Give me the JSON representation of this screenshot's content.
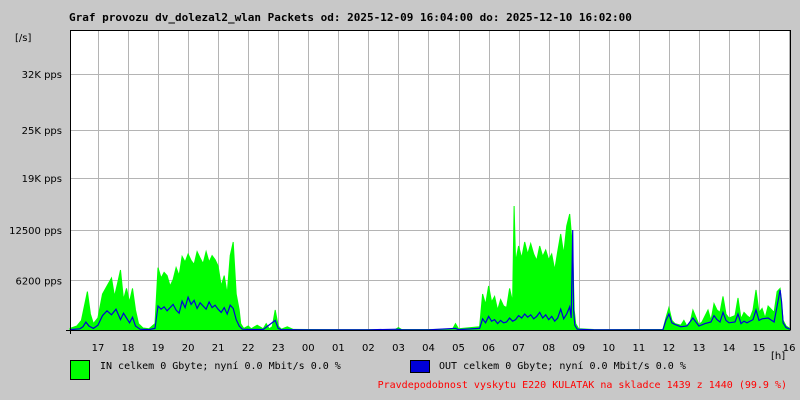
{
  "title": "Graf provozu dv_dolezal2_wlan Packets od: 2025-12-09 16:04:00 do: 2025-12-10 16:02:00",
  "colors": {
    "background": "#c8c8c8",
    "plot_bg": "#ffffff",
    "grid": "#b4b4b4",
    "in": "#00ff00",
    "out": "#0000d8",
    "footer": "#ff0000"
  },
  "chart_data": {
    "type": "area",
    "title": "Graf provozu dv_dolezal2_wlan Packets od: 2025-12-09 16:04:00 do: 2025-12-10 16:02:00",
    "ylabel": "[/s]",
    "xlabel": "[h]",
    "ylim": [
      0,
      37500
    ],
    "xlim": [
      16.07,
      40.03
    ],
    "grid": true,
    "ytick_values": [
      6200,
      12500,
      19000,
      25000,
      32000
    ],
    "ytick_labels": [
      "6200 pps",
      "12500 pps",
      "19K pps",
      "25K pps",
      "32K pps"
    ],
    "xtick_values": [
      17,
      18,
      19,
      20,
      21,
      22,
      23,
      24,
      25,
      26,
      27,
      28,
      29,
      30,
      31,
      32,
      33,
      34,
      35,
      36,
      37,
      38,
      39,
      40
    ],
    "xtick_labels": [
      "17",
      "18",
      "19",
      "20",
      "21",
      "22",
      "23",
      "00",
      "01",
      "02",
      "03",
      "04",
      "05",
      "06",
      "07",
      "08",
      "09",
      "10",
      "11",
      "12",
      "13",
      "14",
      "15",
      "16"
    ],
    "series": [
      {
        "name": "IN",
        "color": "#00ff00",
        "style": "area",
        "points": [
          [
            16.07,
            200
          ],
          [
            16.3,
            500
          ],
          [
            16.45,
            1200
          ],
          [
            16.55,
            3000
          ],
          [
            16.65,
            4800
          ],
          [
            16.75,
            2000
          ],
          [
            16.85,
            800
          ],
          [
            17.0,
            1500
          ],
          [
            17.15,
            4500
          ],
          [
            17.3,
            5500
          ],
          [
            17.45,
            6500
          ],
          [
            17.55,
            4200
          ],
          [
            17.65,
            5800
          ],
          [
            17.75,
            7500
          ],
          [
            17.85,
            3800
          ],
          [
            17.95,
            5200
          ],
          [
            18.05,
            3500
          ],
          [
            18.15,
            5200
          ],
          [
            18.25,
            2500
          ],
          [
            18.35,
            800
          ],
          [
            18.5,
            250
          ],
          [
            18.7,
            150
          ],
          [
            18.9,
            800
          ],
          [
            19.0,
            7800
          ],
          [
            19.1,
            6500
          ],
          [
            19.2,
            7200
          ],
          [
            19.3,
            6800
          ],
          [
            19.4,
            5500
          ],
          [
            19.5,
            6300
          ],
          [
            19.6,
            7800
          ],
          [
            19.7,
            6800
          ],
          [
            19.8,
            9200
          ],
          [
            19.9,
            8500
          ],
          [
            20.0,
            9500
          ],
          [
            20.1,
            8700
          ],
          [
            20.2,
            8200
          ],
          [
            20.3,
            9800
          ],
          [
            20.4,
            9000
          ],
          [
            20.5,
            8300
          ],
          [
            20.6,
            9800
          ],
          [
            20.7,
            8500
          ],
          [
            20.8,
            9300
          ],
          [
            20.9,
            8800
          ],
          [
            21.0,
            8000
          ],
          [
            21.1,
            5500
          ],
          [
            21.2,
            6800
          ],
          [
            21.3,
            4500
          ],
          [
            21.4,
            9300
          ],
          [
            21.5,
            11000
          ],
          [
            21.6,
            4500
          ],
          [
            21.7,
            2500
          ],
          [
            21.75,
            800
          ],
          [
            21.85,
            200
          ],
          [
            22.0,
            500
          ],
          [
            22.1,
            150
          ],
          [
            22.3,
            600
          ],
          [
            22.5,
            150
          ],
          [
            22.6,
            800
          ],
          [
            22.7,
            150
          ],
          [
            22.8,
            400
          ],
          [
            22.9,
            2500
          ],
          [
            23.0,
            500
          ],
          [
            23.1,
            100
          ],
          [
            23.3,
            400
          ],
          [
            23.5,
            80
          ],
          [
            24.0,
            60
          ],
          [
            25.0,
            50
          ],
          [
            26.0,
            50
          ],
          [
            26.9,
            80
          ],
          [
            27.0,
            300
          ],
          [
            27.1,
            80
          ],
          [
            27.5,
            60
          ],
          [
            28.0,
            60
          ],
          [
            28.8,
            100
          ],
          [
            28.9,
            800
          ],
          [
            29.0,
            150
          ],
          [
            29.7,
            400
          ],
          [
            29.8,
            4500
          ],
          [
            29.9,
            3200
          ],
          [
            30.0,
            5500
          ],
          [
            30.1,
            3500
          ],
          [
            30.2,
            4200
          ],
          [
            30.3,
            2500
          ],
          [
            30.4,
            3800
          ],
          [
            30.5,
            3000
          ],
          [
            30.6,
            2800
          ],
          [
            30.7,
            5200
          ],
          [
            30.8,
            3500
          ],
          [
            30.85,
            15500
          ],
          [
            30.9,
            8500
          ],
          [
            31.0,
            10500
          ],
          [
            31.1,
            9000
          ],
          [
            31.2,
            11000
          ],
          [
            31.3,
            9500
          ],
          [
            31.4,
            10800
          ],
          [
            31.5,
            9500
          ],
          [
            31.6,
            8700
          ],
          [
            31.7,
            10500
          ],
          [
            31.8,
            9200
          ],
          [
            31.9,
            10000
          ],
          [
            32.0,
            8800
          ],
          [
            32.1,
            9500
          ],
          [
            32.2,
            7500
          ],
          [
            32.3,
            9800
          ],
          [
            32.4,
            12000
          ],
          [
            32.5,
            9500
          ],
          [
            32.6,
            13000
          ],
          [
            32.7,
            14500
          ],
          [
            32.8,
            10000
          ],
          [
            32.85,
            2500
          ],
          [
            32.9,
            800
          ],
          [
            33.0,
            150
          ],
          [
            33.5,
            60
          ],
          [
            34.0,
            50
          ],
          [
            35.0,
            60
          ],
          [
            35.8,
            60
          ],
          [
            35.9,
            1500
          ],
          [
            36.0,
            2800
          ],
          [
            36.1,
            1200
          ],
          [
            36.2,
            800
          ],
          [
            36.4,
            600
          ],
          [
            36.5,
            1200
          ],
          [
            36.6,
            500
          ],
          [
            36.7,
            800
          ],
          [
            36.8,
            2500
          ],
          [
            37.0,
            700
          ],
          [
            37.1,
            1000
          ],
          [
            37.3,
            2500
          ],
          [
            37.4,
            1200
          ],
          [
            37.5,
            3300
          ],
          [
            37.6,
            2500
          ],
          [
            37.7,
            2200
          ],
          [
            37.8,
            4200
          ],
          [
            37.9,
            2000
          ],
          [
            38.0,
            1500
          ],
          [
            38.2,
            1800
          ],
          [
            38.3,
            4000
          ],
          [
            38.4,
            1400
          ],
          [
            38.5,
            2200
          ],
          [
            38.6,
            1800
          ],
          [
            38.7,
            1500
          ],
          [
            38.8,
            2500
          ],
          [
            38.9,
            5000
          ],
          [
            39.0,
            2200
          ],
          [
            39.1,
            2700
          ],
          [
            39.2,
            1500
          ],
          [
            39.3,
            3000
          ],
          [
            39.5,
            2200
          ],
          [
            39.6,
            4800
          ],
          [
            39.7,
            5200
          ],
          [
            39.8,
            1200
          ],
          [
            39.9,
            500
          ],
          [
            40.03,
            200
          ]
        ]
      },
      {
        "name": "OUT",
        "color": "#0000d8",
        "style": "line",
        "points": [
          [
            16.07,
            50
          ],
          [
            16.4,
            150
          ],
          [
            16.5,
            400
          ],
          [
            16.6,
            1000
          ],
          [
            16.7,
            500
          ],
          [
            16.85,
            200
          ],
          [
            17.0,
            600
          ],
          [
            17.15,
            1800
          ],
          [
            17.3,
            2400
          ],
          [
            17.45,
            1900
          ],
          [
            17.6,
            2600
          ],
          [
            17.75,
            1300
          ],
          [
            17.85,
            2100
          ],
          [
            17.95,
            1500
          ],
          [
            18.05,
            900
          ],
          [
            18.15,
            1600
          ],
          [
            18.25,
            500
          ],
          [
            18.4,
            100
          ],
          [
            18.7,
            50
          ],
          [
            18.9,
            200
          ],
          [
            19.0,
            3000
          ],
          [
            19.1,
            2600
          ],
          [
            19.2,
            2900
          ],
          [
            19.3,
            2400
          ],
          [
            19.4,
            2800
          ],
          [
            19.5,
            3200
          ],
          [
            19.6,
            2500
          ],
          [
            19.7,
            2100
          ],
          [
            19.8,
            3600
          ],
          [
            19.9,
            2800
          ],
          [
            20.0,
            4100
          ],
          [
            20.1,
            3200
          ],
          [
            20.2,
            3700
          ],
          [
            20.3,
            2700
          ],
          [
            20.4,
            3400
          ],
          [
            20.5,
            3000
          ],
          [
            20.6,
            2600
          ],
          [
            20.7,
            3500
          ],
          [
            20.8,
            2800
          ],
          [
            20.9,
            3100
          ],
          [
            21.0,
            2600
          ],
          [
            21.1,
            2200
          ],
          [
            21.2,
            2800
          ],
          [
            21.3,
            2000
          ],
          [
            21.4,
            3100
          ],
          [
            21.5,
            2700
          ],
          [
            21.6,
            1300
          ],
          [
            21.7,
            500
          ],
          [
            21.8,
            100
          ],
          [
            22.0,
            80
          ],
          [
            22.5,
            60
          ],
          [
            22.9,
            1200
          ],
          [
            23.0,
            200
          ],
          [
            23.1,
            50
          ],
          [
            24.0,
            30
          ],
          [
            26.0,
            30
          ],
          [
            27.0,
            100
          ],
          [
            27.1,
            30
          ],
          [
            28.0,
            30
          ],
          [
            28.9,
            200
          ],
          [
            29.0,
            50
          ],
          [
            29.7,
            200
          ],
          [
            29.8,
            1400
          ],
          [
            29.9,
            900
          ],
          [
            30.0,
            1700
          ],
          [
            30.1,
            1100
          ],
          [
            30.2,
            1300
          ],
          [
            30.3,
            800
          ],
          [
            30.4,
            1200
          ],
          [
            30.5,
            900
          ],
          [
            30.6,
            1000
          ],
          [
            30.7,
            1500
          ],
          [
            30.8,
            1100
          ],
          [
            30.9,
            1300
          ],
          [
            31.0,
            1800
          ],
          [
            31.1,
            1500
          ],
          [
            31.2,
            2000
          ],
          [
            31.3,
            1600
          ],
          [
            31.4,
            1900
          ],
          [
            31.5,
            1400
          ],
          [
            31.6,
            1700
          ],
          [
            31.7,
            2200
          ],
          [
            31.8,
            1500
          ],
          [
            31.9,
            1900
          ],
          [
            32.0,
            1300
          ],
          [
            32.1,
            1700
          ],
          [
            32.2,
            1100
          ],
          [
            32.3,
            1500
          ],
          [
            32.4,
            2600
          ],
          [
            32.5,
            1400
          ],
          [
            32.6,
            2000
          ],
          [
            32.7,
            2900
          ],
          [
            32.75,
            1500
          ],
          [
            32.8,
            12500
          ],
          [
            32.83,
            2500
          ],
          [
            32.87,
            600
          ],
          [
            32.95,
            100
          ],
          [
            33.5,
            30
          ],
          [
            35.8,
            30
          ],
          [
            35.9,
            1200
          ],
          [
            36.0,
            2000
          ],
          [
            36.1,
            900
          ],
          [
            36.2,
            700
          ],
          [
            36.4,
            400
          ],
          [
            36.6,
            500
          ],
          [
            36.8,
            1500
          ],
          [
            37.0,
            500
          ],
          [
            37.2,
            800
          ],
          [
            37.4,
            1000
          ],
          [
            37.5,
            1800
          ],
          [
            37.6,
            1300
          ],
          [
            37.7,
            1000
          ],
          [
            37.8,
            2200
          ],
          [
            37.9,
            1200
          ],
          [
            38.0,
            900
          ],
          [
            38.2,
            1000
          ],
          [
            38.3,
            2000
          ],
          [
            38.4,
            800
          ],
          [
            38.5,
            1100
          ],
          [
            38.6,
            900
          ],
          [
            38.8,
            1300
          ],
          [
            38.9,
            2500
          ],
          [
            39.0,
            1200
          ],
          [
            39.1,
            1400
          ],
          [
            39.3,
            1500
          ],
          [
            39.5,
            1000
          ],
          [
            39.6,
            3000
          ],
          [
            39.7,
            5000
          ],
          [
            39.75,
            3500
          ],
          [
            39.8,
            900
          ],
          [
            39.9,
            300
          ],
          [
            40.03,
            100
          ]
        ]
      }
    ]
  },
  "legend": {
    "in_text": "IN celkem 0 Gbyte; nyní   0.0 Mbit/s 0.0 %",
    "out_text": "OUT celkem 0 Gbyte; nyní   0.0 Mbit/s 0.0 %"
  },
  "footer": "Pravdepodobnost vyskytu E220 KULATAK na skladce 1439 z 1440 (99.9 %)"
}
